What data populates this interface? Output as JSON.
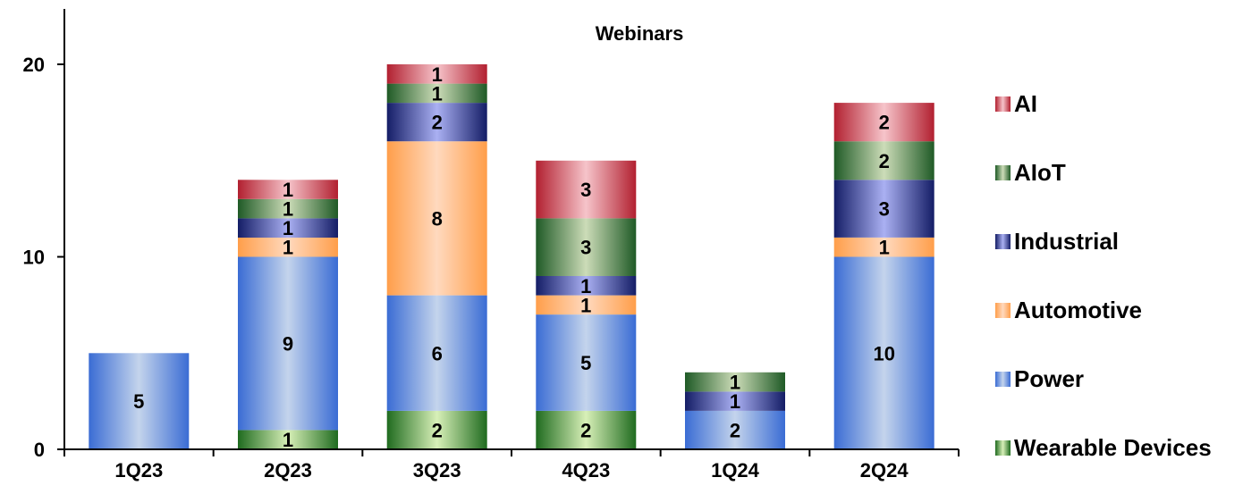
{
  "chart_data": {
    "type": "bar",
    "stacked": true,
    "title": "Webinars",
    "xlabel": "",
    "ylabel": "",
    "ylim": [
      0,
      20
    ],
    "yticks": [
      "0",
      "10",
      "20"
    ],
    "yticks_values": [
      0,
      10,
      20
    ],
    "grid": false,
    "legend_position": "right",
    "categories": [
      "1Q23",
      "2Q23",
      "3Q23",
      "4Q23",
      "1Q24",
      "2Q24"
    ],
    "series": [
      {
        "name": "Wearable Devices",
        "values": [
          0,
          1,
          2,
          2,
          0,
          0
        ],
        "color_dark": "#1f6b1f",
        "color_light": "#d8f0b8"
      },
      {
        "name": "Power",
        "values": [
          5,
          9,
          6,
          5,
          2,
          10
        ],
        "color_dark": "#3a6cd4",
        "color_light": "#c4d4ec"
      },
      {
        "name": "Automotive",
        "values": [
          0,
          1,
          8,
          1,
          0,
          1
        ],
        "color_dark": "#ff9e4a",
        "color_light": "#ffd9be"
      },
      {
        "name": "Industrial",
        "values": [
          0,
          1,
          2,
          1,
          1,
          3
        ],
        "color_dark": "#141d66",
        "color_light": "#aab0f2"
      },
      {
        "name": "AIoT",
        "values": [
          0,
          1,
          1,
          3,
          1,
          2
        ],
        "color_dark": "#1f5a26",
        "color_light": "#ccdcb8"
      },
      {
        "name": "AI",
        "values": [
          0,
          1,
          1,
          3,
          0,
          2
        ],
        "color_dark": "#b22030",
        "color_light": "#f6c4ca"
      }
    ],
    "legend_order": [
      "AI",
      "AIoT",
      "Industrial",
      "Automotive",
      "Power",
      "Wearable Devices"
    ]
  }
}
